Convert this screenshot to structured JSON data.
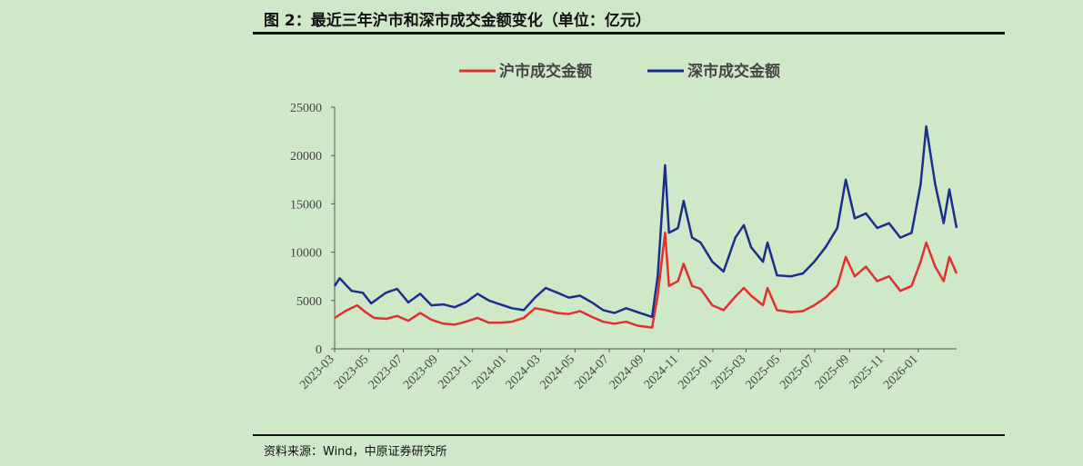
{
  "figure": {
    "title": "图 2：最近三年沪市和深市成交金额变化（单位：亿元）",
    "source": "资料来源：Wind，中原证券研究所"
  },
  "chart_data": {
    "type": "line",
    "x_range": [
      "2023-03-01",
      "2026-03-10"
    ],
    "x_tick_labels": [
      "2023-03",
      "2023-05",
      "2023-07",
      "2023-09",
      "2023-11",
      "2024-01",
      "2024-03",
      "2024-05",
      "2024-07",
      "2024-09",
      "2024-11",
      "2025-01",
      "2025-03",
      "2025-05",
      "2025-07",
      "2025-09",
      "2025-11",
      "2026-01"
    ],
    "y_ticks": [
      0,
      5000,
      10000,
      15000,
      20000,
      25000
    ],
    "ylim": [
      0,
      25000
    ],
    "legend_position": "top-center",
    "series": [
      {
        "name": "沪市成交金额",
        "color": "#e03030",
        "points": [
          [
            "2023-03-01",
            3200
          ],
          [
            "2023-03-20",
            3900
          ],
          [
            "2023-04-10",
            4500
          ],
          [
            "2023-04-25",
            3800
          ],
          [
            "2023-05-10",
            3200
          ],
          [
            "2023-06-01",
            3100
          ],
          [
            "2023-06-20",
            3400
          ],
          [
            "2023-07-10",
            2900
          ],
          [
            "2023-07-31",
            3700
          ],
          [
            "2023-08-20",
            3000
          ],
          [
            "2023-09-10",
            2600
          ],
          [
            "2023-09-30",
            2500
          ],
          [
            "2023-10-20",
            2800
          ],
          [
            "2023-11-10",
            3200
          ],
          [
            "2023-11-30",
            2700
          ],
          [
            "2023-12-20",
            2700
          ],
          [
            "2024-01-10",
            2800
          ],
          [
            "2024-01-31",
            3200
          ],
          [
            "2024-02-20",
            4200
          ],
          [
            "2024-03-10",
            4000
          ],
          [
            "2024-03-31",
            3700
          ],
          [
            "2024-04-20",
            3600
          ],
          [
            "2024-05-10",
            3900
          ],
          [
            "2024-05-31",
            3300
          ],
          [
            "2024-06-20",
            2800
          ],
          [
            "2024-07-10",
            2600
          ],
          [
            "2024-07-31",
            2800
          ],
          [
            "2024-08-20",
            2400
          ],
          [
            "2024-09-15",
            2200
          ],
          [
            "2024-09-25",
            5500
          ],
          [
            "2024-10-08",
            12000
          ],
          [
            "2024-10-15",
            6500
          ],
          [
            "2024-10-31",
            7000
          ],
          [
            "2024-11-10",
            8800
          ],
          [
            "2024-11-25",
            6500
          ],
          [
            "2024-12-10",
            6200
          ],
          [
            "2024-12-31",
            4500
          ],
          [
            "2025-01-20",
            4000
          ],
          [
            "2025-02-10",
            5400
          ],
          [
            "2025-02-25",
            6300
          ],
          [
            "2025-03-10",
            5500
          ],
          [
            "2025-03-31",
            4500
          ],
          [
            "2025-04-08",
            6300
          ],
          [
            "2025-04-25",
            4000
          ],
          [
            "2025-05-20",
            3800
          ],
          [
            "2025-06-10",
            3900
          ],
          [
            "2025-06-30",
            4500
          ],
          [
            "2025-07-20",
            5300
          ],
          [
            "2025-08-10",
            6500
          ],
          [
            "2025-08-25",
            9500
          ],
          [
            "2025-09-10",
            7500
          ],
          [
            "2025-09-30",
            8500
          ],
          [
            "2025-10-20",
            7000
          ],
          [
            "2025-11-10",
            7500
          ],
          [
            "2025-11-30",
            6000
          ],
          [
            "2025-12-20",
            6500
          ],
          [
            "2026-01-05",
            9000
          ],
          [
            "2026-01-15",
            11000
          ],
          [
            "2026-01-31",
            8500
          ],
          [
            "2026-02-15",
            7000
          ],
          [
            "2026-02-25",
            9500
          ],
          [
            "2026-03-10",
            7800
          ]
        ]
      },
      {
        "name": "深市成交金额",
        "color": "#1a2f8a",
        "points": [
          [
            "2023-03-01",
            6500
          ],
          [
            "2023-03-10",
            7300
          ],
          [
            "2023-03-31",
            6000
          ],
          [
            "2023-04-20",
            5800
          ],
          [
            "2023-05-05",
            4700
          ],
          [
            "2023-05-31",
            5800
          ],
          [
            "2023-06-20",
            6200
          ],
          [
            "2023-07-10",
            4800
          ],
          [
            "2023-07-31",
            5700
          ],
          [
            "2023-08-20",
            4500
          ],
          [
            "2023-09-10",
            4600
          ],
          [
            "2023-09-30",
            4300
          ],
          [
            "2023-10-20",
            4800
          ],
          [
            "2023-11-10",
            5700
          ],
          [
            "2023-11-30",
            5000
          ],
          [
            "2023-12-20",
            4600
          ],
          [
            "2024-01-10",
            4200
          ],
          [
            "2024-01-31",
            4000
          ],
          [
            "2024-02-20",
            5300
          ],
          [
            "2024-03-10",
            6300
          ],
          [
            "2024-03-31",
            5800
          ],
          [
            "2024-04-20",
            5300
          ],
          [
            "2024-05-10",
            5500
          ],
          [
            "2024-05-31",
            4800
          ],
          [
            "2024-06-20",
            4000
          ],
          [
            "2024-07-10",
            3700
          ],
          [
            "2024-07-31",
            4200
          ],
          [
            "2024-08-20",
            3800
          ],
          [
            "2024-09-15",
            3300
          ],
          [
            "2024-09-25",
            7500
          ],
          [
            "2024-10-08",
            19000
          ],
          [
            "2024-10-15",
            12000
          ],
          [
            "2024-10-31",
            12500
          ],
          [
            "2024-11-10",
            15300
          ],
          [
            "2024-11-25",
            11500
          ],
          [
            "2024-12-10",
            11000
          ],
          [
            "2024-12-31",
            9000
          ],
          [
            "2025-01-20",
            8000
          ],
          [
            "2025-02-10",
            11500
          ],
          [
            "2025-02-25",
            12800
          ],
          [
            "2025-03-10",
            10500
          ],
          [
            "2025-03-31",
            9000
          ],
          [
            "2025-04-08",
            11000
          ],
          [
            "2025-04-25",
            7600
          ],
          [
            "2025-05-20",
            7500
          ],
          [
            "2025-06-10",
            7800
          ],
          [
            "2025-06-30",
            9000
          ],
          [
            "2025-07-20",
            10500
          ],
          [
            "2025-08-10",
            12500
          ],
          [
            "2025-08-25",
            17500
          ],
          [
            "2025-09-10",
            13500
          ],
          [
            "2025-09-30",
            14000
          ],
          [
            "2025-10-20",
            12500
          ],
          [
            "2025-11-10",
            13000
          ],
          [
            "2025-11-30",
            11500
          ],
          [
            "2025-12-20",
            12000
          ],
          [
            "2026-01-05",
            17000
          ],
          [
            "2026-01-15",
            23000
          ],
          [
            "2026-01-31",
            17000
          ],
          [
            "2026-02-15",
            13000
          ],
          [
            "2026-02-25",
            16500
          ],
          [
            "2026-03-10",
            12500
          ]
        ]
      }
    ]
  }
}
